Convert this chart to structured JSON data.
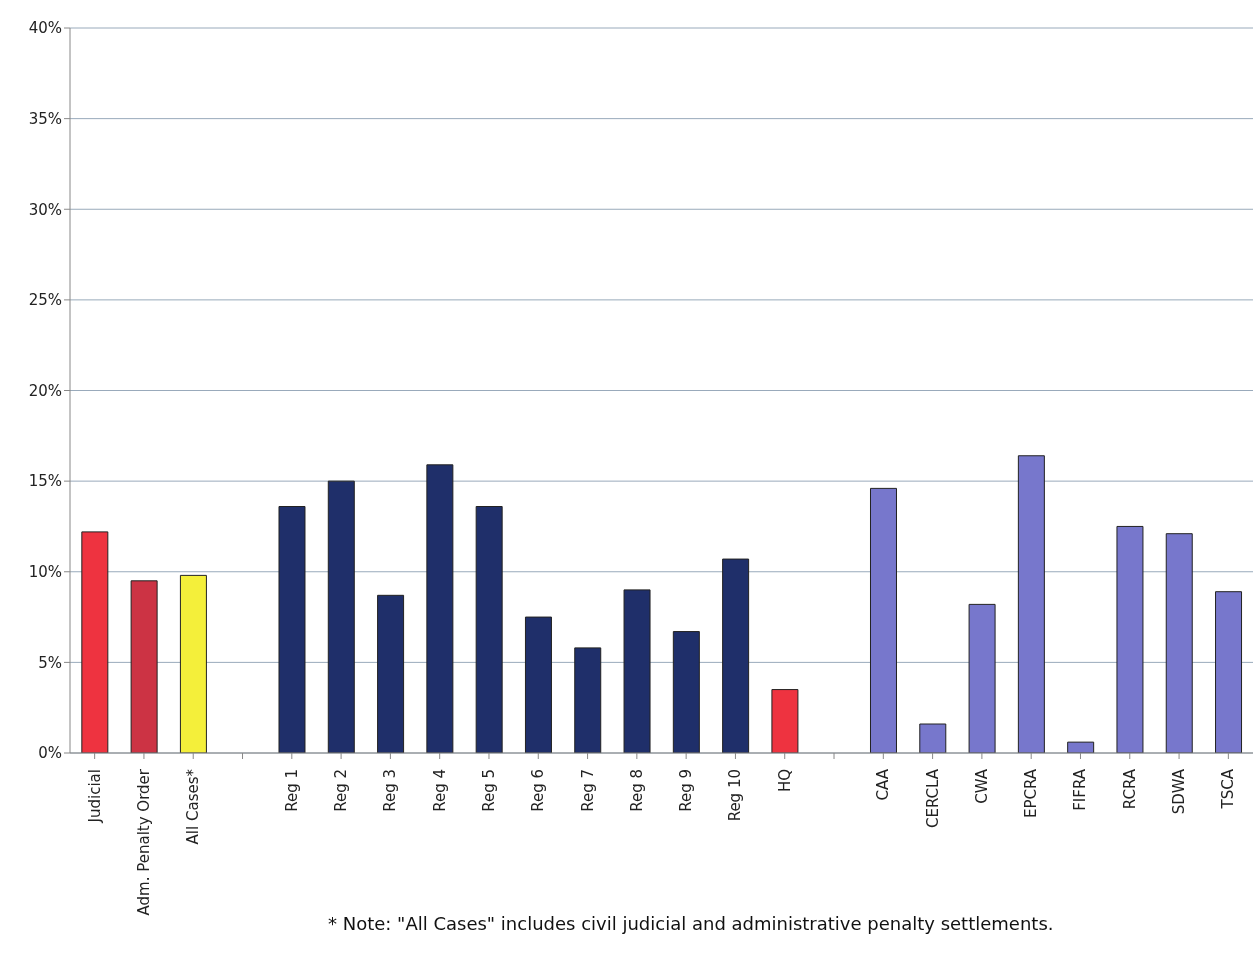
{
  "chart_data": {
    "type": "bar",
    "categories": [
      "Judicial",
      "Adm. Penalty Order",
      "All Cases*",
      null,
      "Reg 1",
      "Reg 2",
      "Reg 3",
      "Reg 4",
      "Reg 5",
      "Reg 6",
      "Reg 7",
      "Reg 8",
      "Reg 9",
      "Reg 10",
      "HQ",
      null,
      "CAA",
      "CERCLA",
      "CWA",
      "EPCRA",
      "FIFRA",
      "RCRA",
      "SDWA",
      "TSCA"
    ],
    "values": [
      12.2,
      9.5,
      9.8,
      null,
      13.6,
      15.0,
      8.7,
      15.9,
      13.6,
      7.5,
      5.8,
      9.0,
      6.7,
      10.7,
      3.5,
      null,
      14.6,
      1.6,
      8.2,
      16.4,
      0.6,
      12.5,
      12.1,
      8.9
    ],
    "colors": [
      "#ee3340",
      "#cc3344",
      "#f4ef3a",
      "#ffffff",
      "#1f2f6a",
      "#1f2f6a",
      "#1f2f6a",
      "#1f2f6a",
      "#1f2f6a",
      "#1f2f6a",
      "#1f2f6a",
      "#1f2f6a",
      "#1f2f6a",
      "#1f2f6a",
      "#ee3340",
      "#ffffff",
      "#7777cc",
      "#7777cc",
      "#7777cc",
      "#7777cc",
      "#7777cc",
      "#7777cc",
      "#7777cc",
      "#7777cc"
    ],
    "ylim": [
      0,
      40
    ],
    "yticks": [
      {
        "value": 0,
        "label": "0%"
      },
      {
        "value": 5,
        "label": "5%"
      },
      {
        "value": 10,
        "label": "10%"
      },
      {
        "value": 15,
        "label": "15%"
      },
      {
        "value": 20,
        "label": "20%"
      },
      {
        "value": 25,
        "label": "25%"
      },
      {
        "value": 30,
        "label": "30%"
      },
      {
        "value": 35,
        "label": "35%"
      },
      {
        "value": 40,
        "label": "40%"
      }
    ],
    "grid": "y",
    "annotations": [
      "* Note: \"All Cases\" includes civil judicial and administrative penalty settlements."
    ]
  }
}
